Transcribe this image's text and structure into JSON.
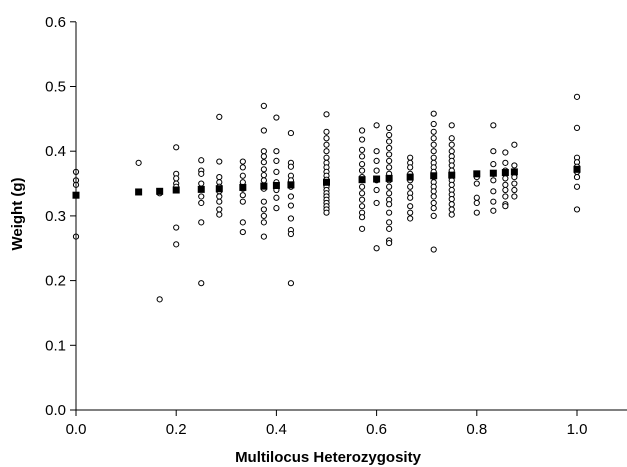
{
  "chart_data": {
    "type": "scatter",
    "xlabel": "Multilocus Heterozygosity",
    "ylabel": "Weight (g)",
    "xlim": [
      0,
      1.1
    ],
    "ylim": [
      0,
      0.6
    ],
    "x_ticks": [
      0,
      0.2,
      0.4,
      0.6,
      0.8,
      1.0
    ],
    "x_tick_labels": [
      "0.0",
      "0.2",
      "0.4",
      "0.6",
      "0.8",
      "1.0"
    ],
    "y_ticks": [
      0,
      0.1,
      0.2,
      0.3,
      0.4,
      0.5,
      0.6
    ],
    "y_tick_labels": [
      "0.0",
      "0.1",
      "0.2",
      "0.3",
      "0.4",
      "0.5",
      "0.6"
    ],
    "grid": false,
    "legend": "none",
    "series": [
      {
        "marker": "open-circle",
        "color": "#000000",
        "points": [
          [
            0.0,
            0.368
          ],
          [
            0.0,
            0.355
          ],
          [
            0.0,
            0.348
          ],
          [
            0.0,
            0.268
          ],
          [
            0.125,
            0.382
          ],
          [
            0.167,
            0.335
          ],
          [
            0.167,
            0.171
          ],
          [
            0.2,
            0.406
          ],
          [
            0.2,
            0.365
          ],
          [
            0.2,
            0.358
          ],
          [
            0.2,
            0.35
          ],
          [
            0.2,
            0.345
          ],
          [
            0.2,
            0.282
          ],
          [
            0.2,
            0.256
          ],
          [
            0.25,
            0.386
          ],
          [
            0.25,
            0.37
          ],
          [
            0.25,
            0.365
          ],
          [
            0.25,
            0.35
          ],
          [
            0.25,
            0.33
          ],
          [
            0.25,
            0.32
          ],
          [
            0.25,
            0.29
          ],
          [
            0.25,
            0.196
          ],
          [
            0.286,
            0.453
          ],
          [
            0.286,
            0.384
          ],
          [
            0.286,
            0.36
          ],
          [
            0.286,
            0.352
          ],
          [
            0.286,
            0.345
          ],
          [
            0.286,
            0.338
          ],
          [
            0.286,
            0.33
          ],
          [
            0.286,
            0.322
          ],
          [
            0.286,
            0.31
          ],
          [
            0.286,
            0.302
          ],
          [
            0.333,
            0.384
          ],
          [
            0.333,
            0.375
          ],
          [
            0.333,
            0.362
          ],
          [
            0.333,
            0.352
          ],
          [
            0.333,
            0.342
          ],
          [
            0.333,
            0.332
          ],
          [
            0.333,
            0.322
          ],
          [
            0.333,
            0.29
          ],
          [
            0.333,
            0.275
          ],
          [
            0.375,
            0.47
          ],
          [
            0.375,
            0.432
          ],
          [
            0.375,
            0.4
          ],
          [
            0.375,
            0.392
          ],
          [
            0.375,
            0.383
          ],
          [
            0.375,
            0.372
          ],
          [
            0.375,
            0.363
          ],
          [
            0.375,
            0.355
          ],
          [
            0.375,
            0.342
          ],
          [
            0.375,
            0.322
          ],
          [
            0.375,
            0.31
          ],
          [
            0.375,
            0.3
          ],
          [
            0.375,
            0.29
          ],
          [
            0.375,
            0.268
          ],
          [
            0.4,
            0.452
          ],
          [
            0.4,
            0.4
          ],
          [
            0.4,
            0.385
          ],
          [
            0.4,
            0.368
          ],
          [
            0.4,
            0.352
          ],
          [
            0.4,
            0.34
          ],
          [
            0.4,
            0.328
          ],
          [
            0.4,
            0.312
          ],
          [
            0.429,
            0.428
          ],
          [
            0.429,
            0.382
          ],
          [
            0.429,
            0.376
          ],
          [
            0.429,
            0.362
          ],
          [
            0.429,
            0.355
          ],
          [
            0.429,
            0.345
          ],
          [
            0.429,
            0.33
          ],
          [
            0.429,
            0.316
          ],
          [
            0.429,
            0.296
          ],
          [
            0.429,
            0.278
          ],
          [
            0.429,
            0.272
          ],
          [
            0.429,
            0.196
          ],
          [
            0.5,
            0.457
          ],
          [
            0.5,
            0.43
          ],
          [
            0.5,
            0.42
          ],
          [
            0.5,
            0.41
          ],
          [
            0.5,
            0.4
          ],
          [
            0.5,
            0.39
          ],
          [
            0.5,
            0.382
          ],
          [
            0.5,
            0.375
          ],
          [
            0.5,
            0.368
          ],
          [
            0.5,
            0.362
          ],
          [
            0.5,
            0.356
          ],
          [
            0.5,
            0.35
          ],
          [
            0.5,
            0.345
          ],
          [
            0.5,
            0.34
          ],
          [
            0.5,
            0.335
          ],
          [
            0.5,
            0.33
          ],
          [
            0.5,
            0.325
          ],
          [
            0.5,
            0.32
          ],
          [
            0.5,
            0.315
          ],
          [
            0.5,
            0.31
          ],
          [
            0.5,
            0.305
          ],
          [
            0.571,
            0.432
          ],
          [
            0.571,
            0.418
          ],
          [
            0.571,
            0.402
          ],
          [
            0.571,
            0.392
          ],
          [
            0.571,
            0.38
          ],
          [
            0.571,
            0.37
          ],
          [
            0.571,
            0.36
          ],
          [
            0.571,
            0.345
          ],
          [
            0.571,
            0.335
          ],
          [
            0.571,
            0.325
          ],
          [
            0.571,
            0.315
          ],
          [
            0.571,
            0.305
          ],
          [
            0.571,
            0.298
          ],
          [
            0.571,
            0.28
          ],
          [
            0.6,
            0.44
          ],
          [
            0.6,
            0.4
          ],
          [
            0.6,
            0.385
          ],
          [
            0.6,
            0.37
          ],
          [
            0.6,
            0.355
          ],
          [
            0.6,
            0.34
          ],
          [
            0.6,
            0.32
          ],
          [
            0.6,
            0.25
          ],
          [
            0.625,
            0.436
          ],
          [
            0.625,
            0.425
          ],
          [
            0.625,
            0.415
          ],
          [
            0.625,
            0.405
          ],
          [
            0.625,
            0.395
          ],
          [
            0.625,
            0.385
          ],
          [
            0.625,
            0.375
          ],
          [
            0.625,
            0.365
          ],
          [
            0.625,
            0.355
          ],
          [
            0.625,
            0.345
          ],
          [
            0.625,
            0.335
          ],
          [
            0.625,
            0.325
          ],
          [
            0.625,
            0.318
          ],
          [
            0.625,
            0.305
          ],
          [
            0.625,
            0.29
          ],
          [
            0.625,
            0.28
          ],
          [
            0.625,
            0.262
          ],
          [
            0.625,
            0.258
          ],
          [
            0.667,
            0.39
          ],
          [
            0.667,
            0.382
          ],
          [
            0.667,
            0.375
          ],
          [
            0.667,
            0.365
          ],
          [
            0.667,
            0.355
          ],
          [
            0.667,
            0.345
          ],
          [
            0.667,
            0.335
          ],
          [
            0.667,
            0.328
          ],
          [
            0.667,
            0.315
          ],
          [
            0.667,
            0.305
          ],
          [
            0.667,
            0.296
          ],
          [
            0.714,
            0.458
          ],
          [
            0.714,
            0.442
          ],
          [
            0.714,
            0.43
          ],
          [
            0.714,
            0.42
          ],
          [
            0.714,
            0.41
          ],
          [
            0.714,
            0.4
          ],
          [
            0.714,
            0.39
          ],
          [
            0.714,
            0.382
          ],
          [
            0.714,
            0.375
          ],
          [
            0.714,
            0.368
          ],
          [
            0.714,
            0.36
          ],
          [
            0.714,
            0.352
          ],
          [
            0.714,
            0.345
          ],
          [
            0.714,
            0.338
          ],
          [
            0.714,
            0.33
          ],
          [
            0.714,
            0.32
          ],
          [
            0.714,
            0.312
          ],
          [
            0.714,
            0.3
          ],
          [
            0.714,
            0.248
          ],
          [
            0.75,
            0.44
          ],
          [
            0.75,
            0.42
          ],
          [
            0.75,
            0.41
          ],
          [
            0.75,
            0.4
          ],
          [
            0.75,
            0.392
          ],
          [
            0.75,
            0.385
          ],
          [
            0.75,
            0.378
          ],
          [
            0.75,
            0.37
          ],
          [
            0.75,
            0.362
          ],
          [
            0.75,
            0.355
          ],
          [
            0.75,
            0.348
          ],
          [
            0.75,
            0.34
          ],
          [
            0.75,
            0.333
          ],
          [
            0.75,
            0.326
          ],
          [
            0.75,
            0.318
          ],
          [
            0.75,
            0.31
          ],
          [
            0.75,
            0.302
          ],
          [
            0.8,
            0.36
          ],
          [
            0.8,
            0.35
          ],
          [
            0.8,
            0.328
          ],
          [
            0.8,
            0.32
          ],
          [
            0.8,
            0.305
          ],
          [
            0.833,
            0.44
          ],
          [
            0.833,
            0.4
          ],
          [
            0.833,
            0.38
          ],
          [
            0.833,
            0.365
          ],
          [
            0.833,
            0.355
          ],
          [
            0.833,
            0.338
          ],
          [
            0.833,
            0.322
          ],
          [
            0.833,
            0.308
          ],
          [
            0.857,
            0.398
          ],
          [
            0.857,
            0.382
          ],
          [
            0.857,
            0.37
          ],
          [
            0.857,
            0.358
          ],
          [
            0.857,
            0.348
          ],
          [
            0.857,
            0.34
          ],
          [
            0.857,
            0.33
          ],
          [
            0.857,
            0.318
          ],
          [
            0.857,
            0.315
          ],
          [
            0.875,
            0.41
          ],
          [
            0.875,
            0.378
          ],
          [
            0.875,
            0.368
          ],
          [
            0.875,
            0.36
          ],
          [
            0.875,
            0.35
          ],
          [
            0.875,
            0.34
          ],
          [
            0.875,
            0.33
          ],
          [
            1.0,
            0.484
          ],
          [
            1.0,
            0.436
          ],
          [
            1.0,
            0.39
          ],
          [
            1.0,
            0.383
          ],
          [
            1.0,
            0.376
          ],
          [
            1.0,
            0.368
          ],
          [
            1.0,
            0.36
          ],
          [
            1.0,
            0.345
          ],
          [
            1.0,
            0.31
          ]
        ]
      },
      {
        "marker": "filled-square",
        "color": "#000000",
        "points": [
          [
            0.0,
            0.332
          ],
          [
            0.125,
            0.337
          ],
          [
            0.167,
            0.338
          ],
          [
            0.2,
            0.34
          ],
          [
            0.25,
            0.341
          ],
          [
            0.286,
            0.342
          ],
          [
            0.333,
            0.344
          ],
          [
            0.375,
            0.346
          ],
          [
            0.4,
            0.347
          ],
          [
            0.429,
            0.348
          ],
          [
            0.5,
            0.352
          ],
          [
            0.571,
            0.356
          ],
          [
            0.6,
            0.357
          ],
          [
            0.625,
            0.358
          ],
          [
            0.667,
            0.36
          ],
          [
            0.714,
            0.362
          ],
          [
            0.75,
            0.363
          ],
          [
            0.8,
            0.365
          ],
          [
            0.833,
            0.366
          ],
          [
            0.857,
            0.367
          ],
          [
            0.875,
            0.368
          ],
          [
            1.0,
            0.372
          ]
        ]
      }
    ]
  }
}
